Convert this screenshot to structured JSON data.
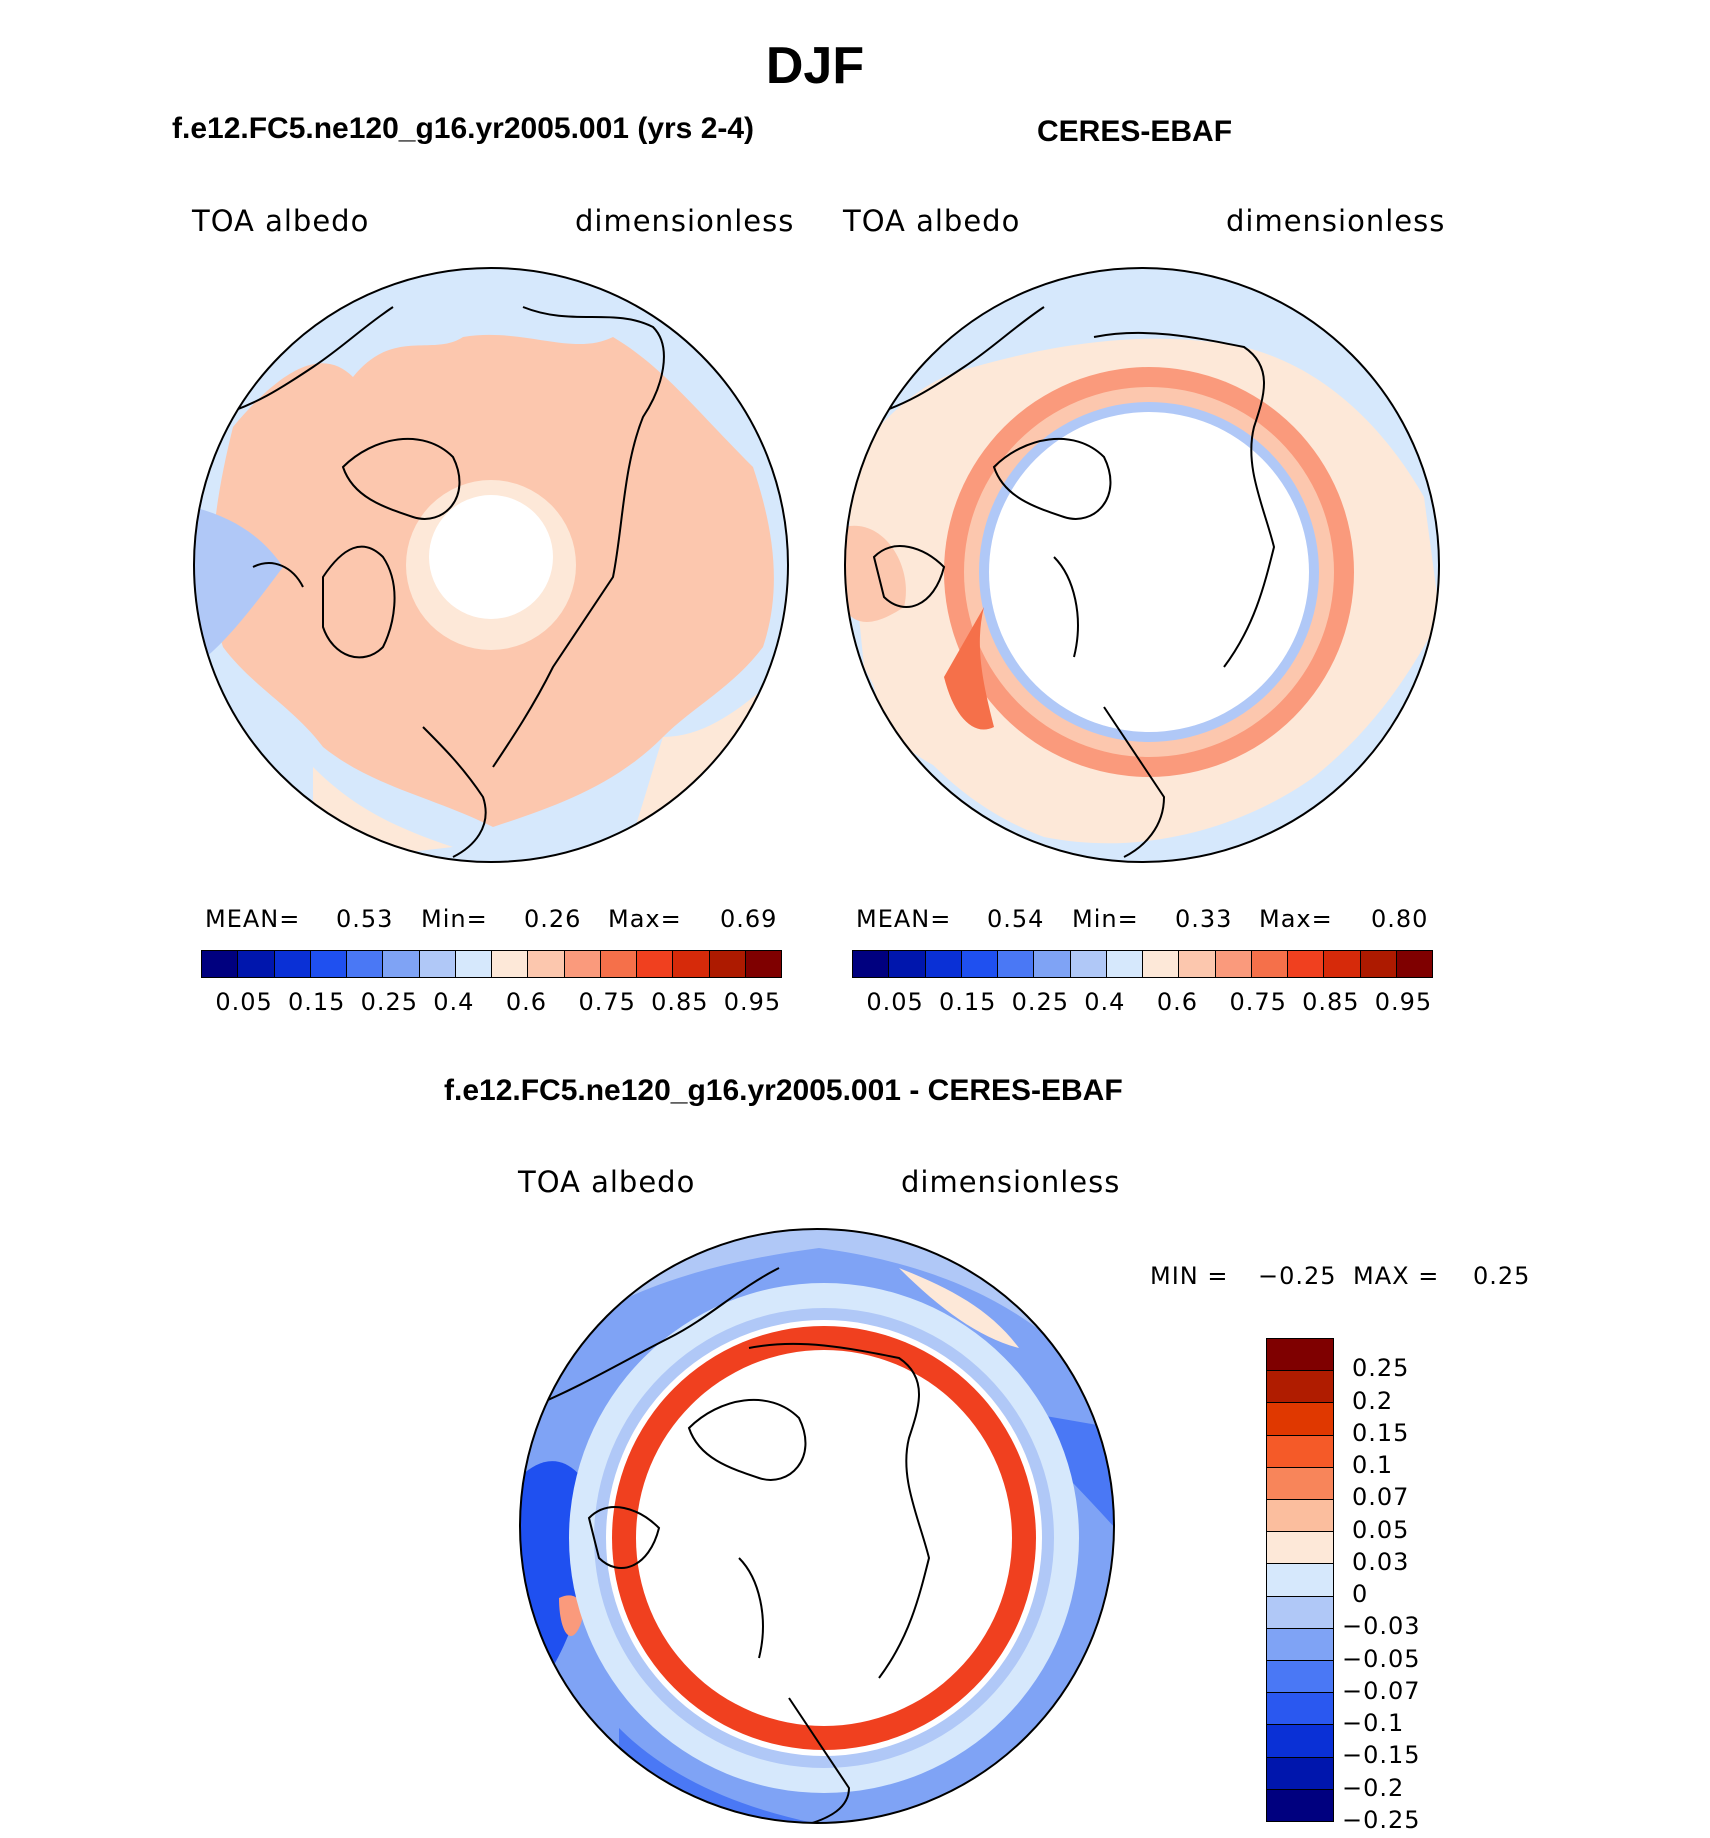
{
  "title": "DJF",
  "panels": [
    {
      "title": "f.e12.FC5.ne120_g16.yr2005.001 (yrs 2-4)",
      "variable": "TOA albedo",
      "units": "dimensionless",
      "mean_label": "MEAN=",
      "mean": "0.53",
      "min_label": "Min=",
      "min": "0.26",
      "max_label": "Max=",
      "max": "0.69"
    },
    {
      "title": "CERES-EBAF",
      "variable": "TOA albedo",
      "units": "dimensionless",
      "mean_label": "MEAN=",
      "mean": "0.54",
      "min_label": "Min=",
      "min": "0.33",
      "max_label": "Max=",
      "max": "0.80"
    }
  ],
  "diff_panel": {
    "title": "f.e12.FC5.ne120_g16.yr2005.001 - CERES-EBAF",
    "variable": "TOA albedo",
    "units": "dimensionless",
    "min_label": "MIN =",
    "min": "−0.25",
    "max_label": "MAX =",
    "max": "0.25"
  },
  "abs_colorbar": {
    "colors": [
      "#00007f",
      "#0016ad",
      "#0a30d6",
      "#1f50f0",
      "#4a78f5",
      "#7fa3f5",
      "#b0c8f7",
      "#d6e8fc",
      "#fde8d8",
      "#fcc7ae",
      "#fa9a7c",
      "#f5704a",
      "#f0401f",
      "#d62a0a",
      "#ad1a00",
      "#7f0000"
    ],
    "labels": [
      "0.05",
      "0.15",
      "0.25",
      "0.4",
      "0.6",
      "0.75",
      "0.85",
      "0.95"
    ]
  },
  "diff_colorbar": {
    "colors": [
      "#7f0000",
      "#b01c00",
      "#e03800",
      "#f55a28",
      "#f8855a",
      "#fbbe9e",
      "#fde8d8",
      "#d6e8fc",
      "#b0c8f7",
      "#7fa3f5",
      "#4a78f5",
      "#2a58f0",
      "#0a30d6",
      "#0016ad",
      "#00007f"
    ],
    "labels": [
      "0.25",
      "0.2",
      "0.15",
      "0.1",
      "0.07",
      "0.05",
      "0.03",
      "0",
      "−0.03",
      "−0.05",
      "−0.07",
      "−0.1",
      "−0.15",
      "−0.2",
      "−0.25"
    ]
  }
}
